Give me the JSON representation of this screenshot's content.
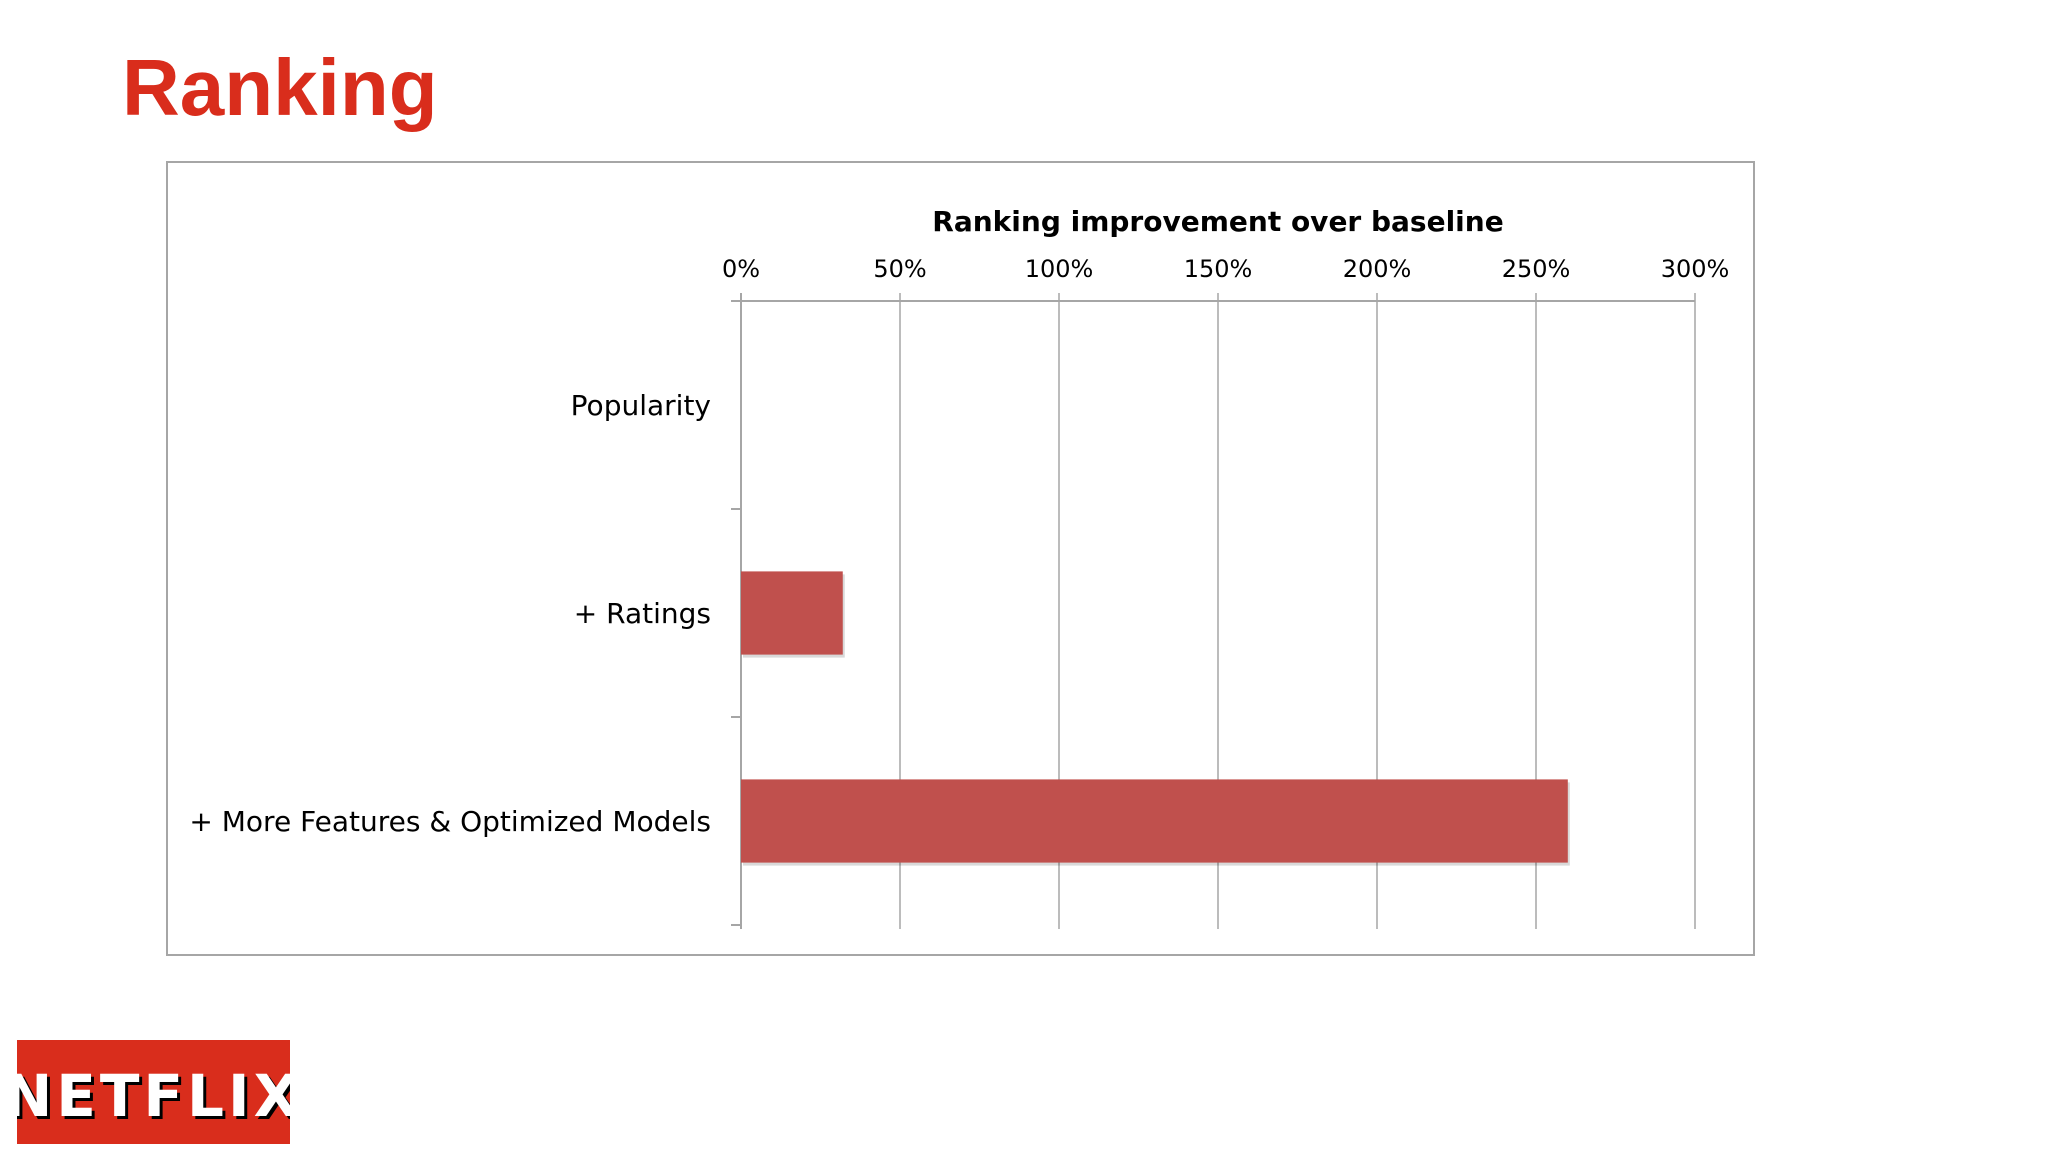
{
  "slide": {
    "title": "Ranking"
  },
  "chart_data": {
    "type": "bar",
    "orientation": "horizontal",
    "title": "Ranking improvement over baseline",
    "xlabel": "",
    "ylabel": "",
    "categories": [
      "Popularity",
      "+ Ratings",
      "+ More Features & Optimized Models"
    ],
    "values": [
      0,
      32,
      260
    ],
    "value_unit": "%",
    "xlim": [
      0,
      300
    ],
    "xticks": [
      "0%",
      "50%",
      "100%",
      "150%",
      "200%",
      "250%",
      "300%"
    ],
    "xtick_values": [
      0,
      50,
      100,
      150,
      200,
      250,
      300
    ],
    "x_axis_position": "top",
    "grid": true,
    "legend": "none",
    "bar_color": "#c0504d",
    "gridline_color": "#a6a6a6"
  },
  "logo": {
    "text": "NETFLIX",
    "background_color": "#d92d1c"
  }
}
